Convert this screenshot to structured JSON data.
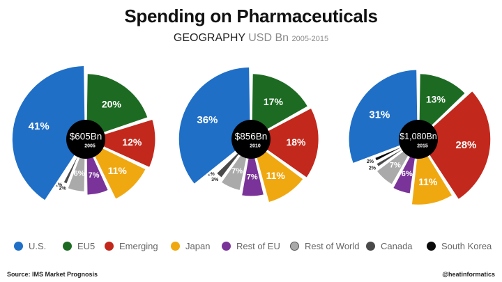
{
  "header": {
    "title": "Spending on Pharmaceuticals",
    "subtitle_main": "GEOGRAPHY",
    "subtitle_unit": "USD Bn",
    "subtitle_years": "2005-2015"
  },
  "footer": {
    "source": "Source: IMS Market Prognosis",
    "credit": "@heatinformatics"
  },
  "colors": {
    "U.S.": "#1f6fc7",
    "EU5": "#1d6b22",
    "Emerging": "#c2281c",
    "Japan": "#f0a811",
    "Rest of EU": "#7a3399",
    "Rest of World": "#aaaaaa",
    "Canada": "#4a4a4a",
    "South Korea": "#0a0a0a"
  },
  "legend": [
    "U.S.",
    "EU5",
    "Emerging",
    "Japan",
    "Rest of EU",
    "Rest of World",
    "Canada",
    "South Korea"
  ],
  "chart_data": [
    {
      "type": "pie",
      "center_value": "$605Bn",
      "center_year": "2005",
      "categories": [
        "EU5",
        "Emerging",
        "Japan",
        "Rest of EU",
        "Rest of World",
        "Canada",
        "South Korea",
        "U.S."
      ],
      "values": [
        20,
        12,
        11,
        7,
        6,
        2,
        1,
        41
      ],
      "labels": [
        "20%",
        "12%",
        "11%",
        "7%",
        "6%",
        "2%",
        "1%",
        "41%"
      ]
    },
    {
      "type": "pie",
      "center_value": "$856Bn",
      "center_year": "2010",
      "categories": [
        "EU5",
        "Emerging",
        "Japan",
        "Rest of EU",
        "Rest of World",
        "Canada",
        "South Korea",
        "U.S."
      ],
      "values": [
        17,
        18,
        11,
        7,
        7,
        3,
        1,
        36
      ],
      "labels": [
        "17%",
        "18%",
        "11%",
        "7%",
        "7%",
        "3%",
        "1%",
        "36%"
      ]
    },
    {
      "type": "pie",
      "center_value": "$1,080Bn",
      "center_year": "2015",
      "categories": [
        "EU5",
        "Emerging",
        "Japan",
        "Rest of EU",
        "Rest of World",
        "Canada",
        "South Korea",
        "U.S."
      ],
      "values": [
        13,
        28,
        11,
        6,
        7,
        2,
        2,
        31
      ],
      "labels": [
        "13%",
        "28%",
        "11%",
        "6%",
        "7%",
        "2%",
        "2%",
        "31%"
      ]
    }
  ]
}
